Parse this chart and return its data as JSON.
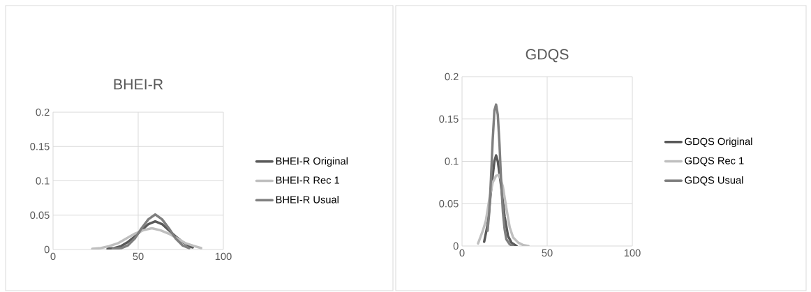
{
  "chart_data": [
    {
      "type": "line",
      "title": "BHEI-R",
      "xlim": [
        0,
        100
      ],
      "ylim": [
        0,
        0.2
      ],
      "xticks": [
        0,
        50,
        100
      ],
      "yticks": [
        0,
        0.05,
        0.1,
        0.15,
        0.2
      ],
      "grid": true,
      "legend": "right",
      "marker": "none",
      "series": [
        {
          "name": "BHEI-R Original",
          "color": "#595959",
          "x": [
            32,
            36,
            40,
            44,
            48,
            52,
            56,
            60,
            64,
            68,
            72,
            76,
            80,
            82
          ],
          "values": [
            0.001,
            0.002,
            0.005,
            0.011,
            0.019,
            0.028,
            0.037,
            0.041,
            0.037,
            0.028,
            0.019,
            0.011,
            0.005,
            0.003
          ]
        },
        {
          "name": "BHEI-R Rec 1",
          "color": "#bfbfbf",
          "x": [
            23,
            28,
            33,
            38,
            43,
            48,
            53,
            58,
            63,
            68,
            73,
            78,
            83,
            87
          ],
          "values": [
            0.001,
            0.002,
            0.005,
            0.009,
            0.016,
            0.023,
            0.028,
            0.031,
            0.028,
            0.023,
            0.016,
            0.009,
            0.005,
            0.002
          ]
        },
        {
          "name": "BHEI-R Usual",
          "color": "#7f7f7f",
          "x": [
            35,
            40,
            44,
            48,
            52,
            56,
            60,
            64,
            68,
            72,
            76,
            80
          ],
          "values": [
            0.001,
            0.002,
            0.006,
            0.016,
            0.031,
            0.044,
            0.051,
            0.044,
            0.031,
            0.016,
            0.006,
            0.002
          ]
        }
      ]
    },
    {
      "type": "line",
      "title": "GDQS",
      "xlim": [
        0,
        100
      ],
      "ylim": [
        0,
        0.2
      ],
      "xticks": [
        0,
        50,
        100
      ],
      "yticks": [
        0,
        0.05,
        0.1,
        0.15,
        0.2
      ],
      "grid": true,
      "legend": "right",
      "marker": "none",
      "series": [
        {
          "name": "GDQS Original",
          "color": "#595959",
          "x": [
            13,
            15,
            17,
            19,
            20,
            21,
            23,
            25,
            27,
            29,
            32
          ],
          "values": [
            0.005,
            0.025,
            0.065,
            0.1,
            0.107,
            0.1,
            0.07,
            0.035,
            0.012,
            0.004,
            0
          ]
        },
        {
          "name": "GDQS Rec 1",
          "color": "#bfbfbf",
          "x": [
            9.4,
            12.2,
            14,
            16,
            18,
            20,
            22,
            24,
            26,
            28,
            30,
            33,
            36,
            39
          ],
          "values": [
            0.003,
            0.018,
            0.03,
            0.055,
            0.075,
            0.083,
            0.084,
            0.07,
            0.045,
            0.022,
            0.01,
            0.004,
            0.001,
            0
          ]
        },
        {
          "name": "GDQS Usual",
          "color": "#7f7f7f",
          "x": [
            15,
            16,
            17,
            18,
            19,
            20,
            21,
            22,
            23,
            24,
            25,
            26,
            28,
            30
          ],
          "values": [
            0.018,
            0.04,
            0.08,
            0.125,
            0.16,
            0.167,
            0.155,
            0.12,
            0.075,
            0.04,
            0.02,
            0.008,
            0.002,
            0
          ]
        }
      ]
    }
  ]
}
